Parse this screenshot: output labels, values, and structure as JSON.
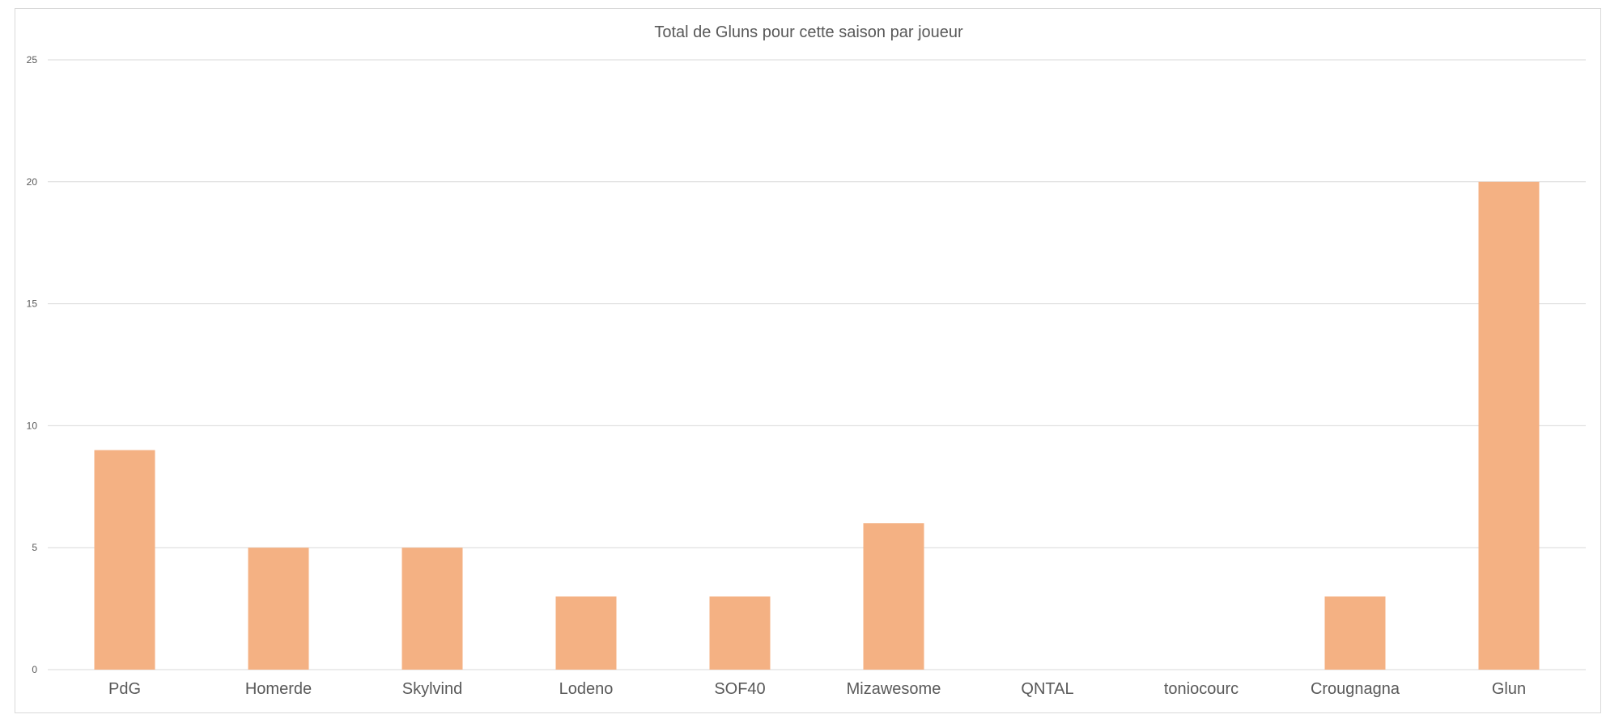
{
  "chart_data": {
    "type": "bar",
    "title": "Total de Gluns pour cette saison par joueur",
    "xlabel": "",
    "ylabel": "",
    "categories": [
      "PdG",
      "Homerde",
      "Skylvind",
      "Lodeno",
      "SOF40",
      "Mizawesome",
      "QNTAL",
      "toniocourc",
      "Crougnagna",
      "Glun"
    ],
    "values": [
      9,
      5,
      5,
      3,
      3,
      6,
      0,
      0,
      3,
      20
    ],
    "ylim": [
      0,
      25
    ],
    "yticks": [
      "0",
      "5",
      "10",
      "15",
      "20",
      "25"
    ],
    "grid": true,
    "legend": "none",
    "bar_color": "#F4B183",
    "grid_color": "#D9D9D9"
  }
}
